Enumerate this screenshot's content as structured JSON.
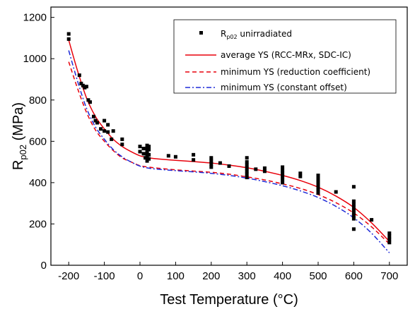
{
  "chart_data": {
    "type": "scatter",
    "title": "",
    "xlabel": "Test Temperature (°C)",
    "ylabel_main": "R",
    "ylabel_sub": "p02",
    "ylabel_unit": " (MPa)",
    "xlim": [
      -250,
      750
    ],
    "ylim": [
      0,
      1250
    ],
    "xticks": [
      -200,
      -100,
      0,
      100,
      200,
      300,
      400,
      500,
      600,
      700
    ],
    "yticks": [
      0,
      200,
      400,
      600,
      800,
      1000,
      1200
    ],
    "legend_position": "top-right",
    "scatter": {
      "legend_main": "R",
      "legend_sub": "p02",
      "legend_rest": " unirradiated",
      "color": "#000000",
      "points": [
        [
          -200,
          1120
        ],
        [
          -200,
          1095
        ],
        [
          -170,
          920
        ],
        [
          -165,
          880
        ],
        [
          -160,
          870
        ],
        [
          -155,
          860
        ],
        [
          -150,
          865
        ],
        [
          -145,
          800
        ],
        [
          -140,
          790
        ],
        [
          -130,
          720
        ],
        [
          -125,
          700
        ],
        [
          -120,
          690
        ],
        [
          -110,
          660
        ],
        [
          -100,
          700
        ],
        [
          -100,
          650
        ],
        [
          -90,
          680
        ],
        [
          -90,
          645
        ],
        [
          -80,
          610
        ],
        [
          -75,
          650
        ],
        [
          -50,
          610
        ],
        [
          -50,
          585
        ],
        [
          0,
          575
        ],
        [
          0,
          550
        ],
        [
          10,
          565
        ],
        [
          10,
          540
        ],
        [
          15,
          520
        ],
        [
          20,
          580
        ],
        [
          20,
          570
        ],
        [
          20,
          560
        ],
        [
          20,
          550
        ],
        [
          20,
          540
        ],
        [
          20,
          530
        ],
        [
          20,
          520
        ],
        [
          20,
          505
        ],
        [
          25,
          575
        ],
        [
          25,
          560
        ],
        [
          25,
          535
        ],
        [
          25,
          515
        ],
        [
          80,
          530
        ],
        [
          100,
          525
        ],
        [
          150,
          535
        ],
        [
          150,
          510
        ],
        [
          200,
          520
        ],
        [
          200,
          505
        ],
        [
          200,
          490
        ],
        [
          200,
          475
        ],
        [
          225,
          495
        ],
        [
          250,
          480
        ],
        [
          300,
          520
        ],
        [
          300,
          500
        ],
        [
          300,
          485
        ],
        [
          300,
          470
        ],
        [
          300,
          455
        ],
        [
          300,
          440
        ],
        [
          300,
          425
        ],
        [
          325,
          465
        ],
        [
          350,
          470
        ],
        [
          350,
          455
        ],
        [
          400,
          475
        ],
        [
          400,
          460
        ],
        [
          400,
          445
        ],
        [
          400,
          430
        ],
        [
          400,
          415
        ],
        [
          400,
          400
        ],
        [
          450,
          445
        ],
        [
          450,
          430
        ],
        [
          500,
          435
        ],
        [
          500,
          420
        ],
        [
          500,
          405
        ],
        [
          500,
          390
        ],
        [
          500,
          375
        ],
        [
          500,
          360
        ],
        [
          500,
          350
        ],
        [
          550,
          355
        ],
        [
          600,
          380
        ],
        [
          600,
          310
        ],
        [
          600,
          295
        ],
        [
          600,
          280
        ],
        [
          600,
          265
        ],
        [
          600,
          250
        ],
        [
          600,
          240
        ],
        [
          600,
          225
        ],
        [
          600,
          175
        ],
        [
          650,
          220
        ],
        [
          700,
          155
        ],
        [
          700,
          140
        ],
        [
          700,
          125
        ],
        [
          700,
          110
        ]
      ]
    },
    "series": [
      {
        "name": "average YS (RCC-MRx, SDC-IC)",
        "color": "#e8000b",
        "dash": "solid",
        "x": [
          -200,
          -175,
          -150,
          -125,
          -100,
          -75,
          -50,
          -25,
          0,
          25,
          50,
          100,
          150,
          200,
          250,
          300,
          350,
          400,
          450,
          500,
          550,
          600,
          650,
          700
        ],
        "y": [
          1090,
          940,
          810,
          720,
          660,
          610,
          575,
          550,
          530,
          520,
          515,
          508,
          502,
          495,
          485,
          472,
          455,
          435,
          410,
          378,
          335,
          280,
          205,
          115
        ]
      },
      {
        "name": "minimum YS (reduction coefficient)",
        "color": "#e8000b",
        "dash": "dashed",
        "x": [
          -200,
          -175,
          -150,
          -125,
          -100,
          -75,
          -50,
          -25,
          0,
          25,
          50,
          100,
          150,
          200,
          250,
          300,
          350,
          400,
          450,
          500,
          550,
          600,
          650,
          700
        ],
        "y": [
          985,
          855,
          740,
          655,
          600,
          555,
          520,
          500,
          482,
          475,
          470,
          462,
          456,
          450,
          441,
          428,
          413,
          394,
          372,
          342,
          303,
          253,
          186,
          103
        ]
      },
      {
        "name": "minimum YS (constant offset)",
        "color": "#1f2bd8",
        "dash": "dashdot",
        "x": [
          -200,
          -175,
          -150,
          -125,
          -100,
          -75,
          -50,
          -25,
          0,
          25,
          50,
          100,
          150,
          200,
          250,
          300,
          350,
          400,
          450,
          500,
          550,
          600,
          650,
          700
        ],
        "y": [
          1040,
          890,
          760,
          670,
          610,
          560,
          525,
          500,
          480,
          470,
          465,
          458,
          452,
          445,
          435,
          422,
          405,
          385,
          360,
          328,
          285,
          230,
          155,
          60
        ]
      }
    ]
  }
}
